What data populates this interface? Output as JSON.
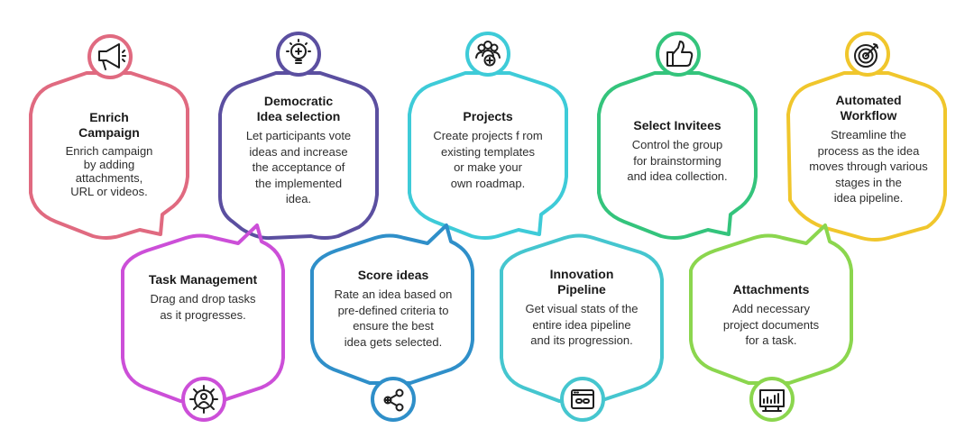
{
  "features": [
    {
      "id": "enrich",
      "title": "Enrich\nCampaign",
      "desc": "Enrich campaign\nby adding\nattachments,\nURL or videos.",
      "color": "#e06a80",
      "icon": "megaphone-icon"
    },
    {
      "id": "democratic",
      "title": "Democratic\nIdea selection",
      "desc": "Let participants vote\nideas and increase\nthe acceptance of\nthe implemented\nidea.",
      "color": "#5b4fa0",
      "icon": "lightbulb-icon"
    },
    {
      "id": "projects",
      "title": "Projects",
      "desc": "Create projects f rom\nexisting templates\nor make your\nown roadmap.",
      "color": "#3ecbd8",
      "icon": "team-add-icon"
    },
    {
      "id": "invitees",
      "title": "Select Invitees",
      "desc": "Control the group\nfor brainstorming\nand idea collection.",
      "color": "#34c47c",
      "icon": "thumbs-up-icon"
    },
    {
      "id": "workflow",
      "title": "Automated\nWorkflow",
      "desc": "Streamline the\nprocess as the idea\nmoves through various\nstages in the\nidea pipeline.",
      "color": "#f0c62c",
      "icon": "target-icon"
    },
    {
      "id": "task",
      "title": "Task Management",
      "desc": "Drag and drop tasks\nas it progresses.",
      "color": "#cc4fd8",
      "icon": "gear-user-icon"
    },
    {
      "id": "score",
      "title": "Score ideas",
      "desc": "Rate an idea based on\npre-defined criteria to\nensure the best\nidea gets selected.",
      "color": "#2f8fc9",
      "icon": "share-plus-icon"
    },
    {
      "id": "pipeline",
      "title": "Innovation\nPipeline",
      "desc": "Get visual stats of the\nentire idea pipeline\nand its progression.",
      "color": "#45c6cf",
      "icon": "browser-link-icon"
    },
    {
      "id": "attachments",
      "title": "Attachments",
      "desc": "Add necessary\nproject documents\nfor a task.",
      "color": "#8bd64e",
      "icon": "chart-board-icon"
    }
  ]
}
